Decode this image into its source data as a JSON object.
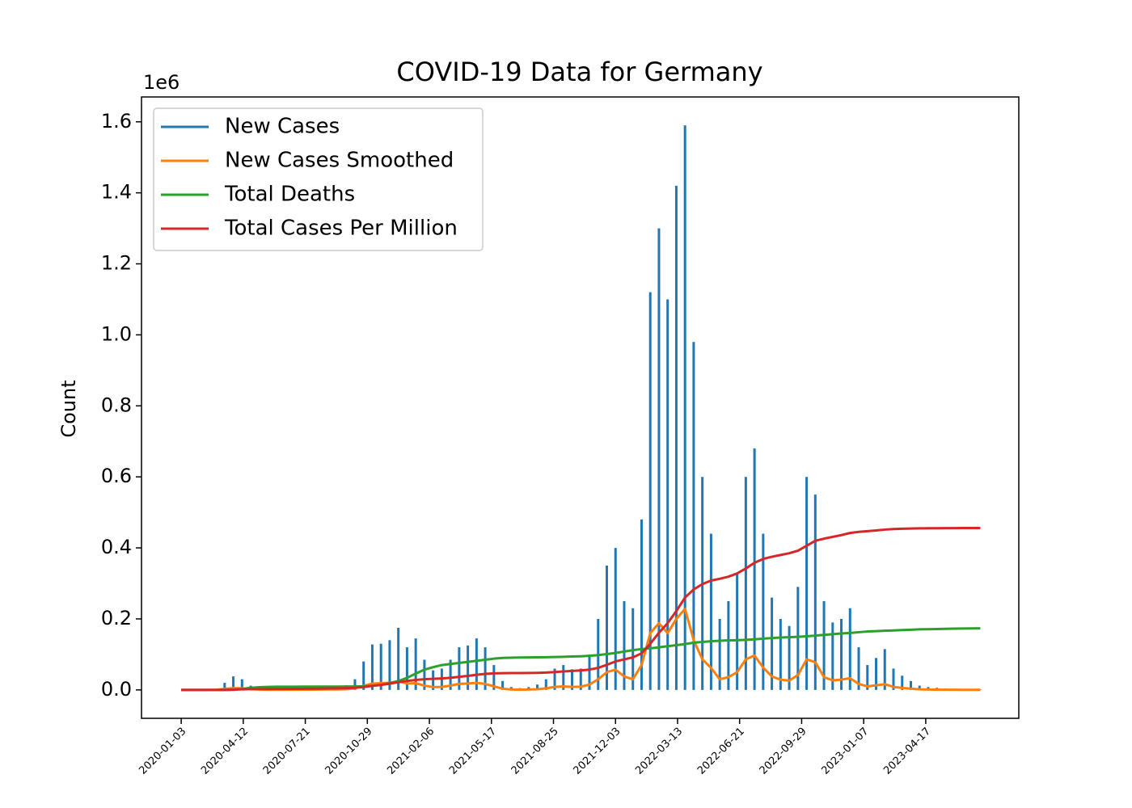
{
  "chart_data": {
    "type": "line",
    "title": "COVID-19 Data for Germany",
    "y_label": "Count",
    "y_offset_label": "1e6",
    "x": [
      "2020-01-03",
      "2020-01-17",
      "2020-01-31",
      "2020-02-14",
      "2020-02-28",
      "2020-03-13",
      "2020-03-27",
      "2020-04-10",
      "2020-04-24",
      "2020-05-08",
      "2020-05-22",
      "2020-06-05",
      "2020-06-19",
      "2020-07-03",
      "2020-07-17",
      "2020-07-31",
      "2020-08-14",
      "2020-08-28",
      "2020-09-11",
      "2020-09-25",
      "2020-10-09",
      "2020-10-23",
      "2020-11-06",
      "2020-11-20",
      "2020-12-04",
      "2020-12-18",
      "2021-01-01",
      "2021-01-15",
      "2021-01-29",
      "2021-02-12",
      "2021-02-26",
      "2021-03-12",
      "2021-03-26",
      "2021-04-09",
      "2021-04-23",
      "2021-05-07",
      "2021-05-21",
      "2021-06-04",
      "2021-06-18",
      "2021-07-02",
      "2021-07-16",
      "2021-07-30",
      "2021-08-13",
      "2021-08-27",
      "2021-09-10",
      "2021-09-24",
      "2021-10-08",
      "2021-10-22",
      "2021-11-05",
      "2021-11-19",
      "2021-12-03",
      "2021-12-17",
      "2021-12-31",
      "2022-01-14",
      "2022-01-28",
      "2022-02-11",
      "2022-02-25",
      "2022-03-11",
      "2022-03-25",
      "2022-04-08",
      "2022-04-22",
      "2022-05-06",
      "2022-05-20",
      "2022-06-03",
      "2022-06-17",
      "2022-07-01",
      "2022-07-15",
      "2022-07-29",
      "2022-08-12",
      "2022-08-26",
      "2022-09-09",
      "2022-09-23",
      "2022-10-07",
      "2022-10-21",
      "2022-11-04",
      "2022-11-18",
      "2022-12-02",
      "2022-12-16",
      "2022-12-30",
      "2023-01-13",
      "2023-01-27",
      "2023-02-10",
      "2023-02-24",
      "2023-03-10",
      "2023-03-24",
      "2023-04-07",
      "2023-04-21",
      "2023-05-05",
      "2023-05-19",
      "2023-06-02",
      "2023-06-16",
      "2023-06-30",
      "2023-07-14"
    ],
    "series": [
      {
        "name": "New Cases",
        "color": "#1f77b4",
        "mark": "vlines",
        "values": [
          0,
          0,
          0,
          0,
          1000,
          20000,
          38000,
          30000,
          12000,
          6000,
          4000,
          3000,
          4000,
          3000,
          4000,
          6000,
          9000,
          9000,
          10000,
          13000,
          30000,
          80000,
          128000,
          130000,
          140000,
          175000,
          120000,
          145000,
          85000,
          55000,
          60000,
          85000,
          120000,
          125000,
          145000,
          120000,
          70000,
          25000,
          8000,
          5000,
          8000,
          15000,
          30000,
          60000,
          70000,
          58000,
          60000,
          100000,
          200000,
          350000,
          400000,
          250000,
          230000,
          480000,
          1120000,
          1300000,
          1100000,
          1420000,
          1590000,
          980000,
          600000,
          440000,
          200000,
          250000,
          330000,
          600000,
          680000,
          440000,
          260000,
          200000,
          180000,
          290000,
          600000,
          550000,
          250000,
          190000,
          200000,
          230000,
          120000,
          70000,
          90000,
          115000,
          60000,
          40000,
          25000,
          12000,
          8000,
          6000,
          4000,
          3000,
          2000,
          1500,
          1000
        ]
      },
      {
        "name": "New Cases Smoothed",
        "color": "#ff7f0e",
        "values": [
          0,
          0,
          0,
          0,
          100,
          3000,
          5000,
          4500,
          2000,
          1000,
          600,
          500,
          500,
          500,
          700,
          900,
          1200,
          1300,
          1500,
          2000,
          4500,
          11000,
          18000,
          19000,
          20000,
          24000,
          18000,
          19000,
          12000,
          8000,
          8500,
          12000,
          17000,
          18000,
          20000,
          17000,
          10000,
          3500,
          1200,
          700,
          1100,
          2000,
          4500,
          8500,
          10000,
          8500,
          9000,
          15000,
          30000,
          50000,
          57000,
          38000,
          30000,
          70000,
          160000,
          188000,
          160000,
          200000,
          228000,
          140000,
          86000,
          62000,
          30000,
          36000,
          50000,
          86000,
          97000,
          63000,
          38000,
          29000,
          26000,
          42000,
          86000,
          78000,
          36000,
          27000,
          29000,
          33000,
          17000,
          10000,
          13000,
          16000,
          8500,
          5700,
          3500,
          1700,
          1100,
          900,
          600,
          400,
          300,
          200,
          150
        ]
      },
      {
        "name": "Total Deaths",
        "color": "#2ca02c",
        "values": [
          0,
          0,
          0,
          0,
          0,
          10,
          600,
          2900,
          5900,
          7600,
          8600,
          8900,
          9000,
          9100,
          9200,
          9200,
          9300,
          9400,
          9400,
          9500,
          9700,
          10200,
          11500,
          14000,
          19000,
          25000,
          34000,
          46000,
          57000,
          64000,
          70000,
          73000,
          76000,
          79000,
          82000,
          85000,
          88000,
          90000,
          90800,
          91300,
          91500,
          91700,
          92000,
          92700,
          93300,
          94000,
          94800,
          96000,
          98000,
          101000,
          104000,
          108000,
          112000,
          115000,
          117000,
          120000,
          123000,
          126000,
          129000,
          133000,
          135000,
          137000,
          138500,
          139500,
          140000,
          141000,
          142500,
          144500,
          146000,
          147500,
          148500,
          149500,
          151000,
          153000,
          155000,
          157000,
          159000,
          160500,
          162500,
          164500,
          165500,
          166500,
          167500,
          168500,
          169500,
          170500,
          171000,
          171500,
          172000,
          172500,
          173000,
          173300,
          173500
        ]
      },
      {
        "name": "Total Cases Per Million",
        "color": "#d62728",
        "values": [
          0,
          0,
          0,
          0,
          0,
          40,
          850,
          1700,
          2200,
          2400,
          2600,
          2700,
          2800,
          2950,
          3100,
          3400,
          3700,
          4100,
          4500,
          5000,
          5900,
          8100,
          11200,
          14200,
          17600,
          21700,
          25100,
          28200,
          30000,
          31100,
          32400,
          34100,
          36800,
          39500,
          42700,
          45200,
          46600,
          47100,
          47300,
          47500,
          47700,
          48000,
          48800,
          50300,
          52000,
          53400,
          54800,
          57200,
          62100,
          70600,
          80200,
          86000,
          91500,
          103000,
          130000,
          161000,
          188000,
          222000,
          260000,
          283000,
          298000,
          308000,
          313000,
          319000,
          328000,
          342000,
          358000,
          369000,
          375000,
          380000,
          385000,
          392000,
          406000,
          420000,
          426000,
          431000,
          436000,
          442000,
          445000,
          447000,
          449000,
          451500,
          453000,
          454000,
          454600,
          455000,
          455300,
          455500,
          455600,
          455700,
          455800,
          455800,
          455900
        ]
      }
    ],
    "xlim": [
      "2019-10-31",
      "2023-09-14"
    ],
    "xticks": [
      "2020-01-03",
      "2020-04-12",
      "2020-07-21",
      "2020-10-29",
      "2021-02-06",
      "2021-05-17",
      "2021-08-25",
      "2021-12-03",
      "2022-03-13",
      "2022-06-21",
      "2022-09-29",
      "2023-01-07",
      "2023-04-17"
    ],
    "ylim": [
      -80000,
      1670000
    ],
    "yticks": [
      {
        "value": 0,
        "label": "0.0"
      },
      {
        "value": 200000,
        "label": "0.2"
      },
      {
        "value": 400000,
        "label": "0.4"
      },
      {
        "value": 600000,
        "label": "0.6"
      },
      {
        "value": 800000,
        "label": "0.8"
      },
      {
        "value": 1000000,
        "label": "1.0"
      },
      {
        "value": 1200000,
        "label": "1.2"
      },
      {
        "value": 1400000,
        "label": "1.4"
      },
      {
        "value": 1600000,
        "label": "1.6"
      }
    ],
    "legend": "upper left",
    "grid": false
  }
}
